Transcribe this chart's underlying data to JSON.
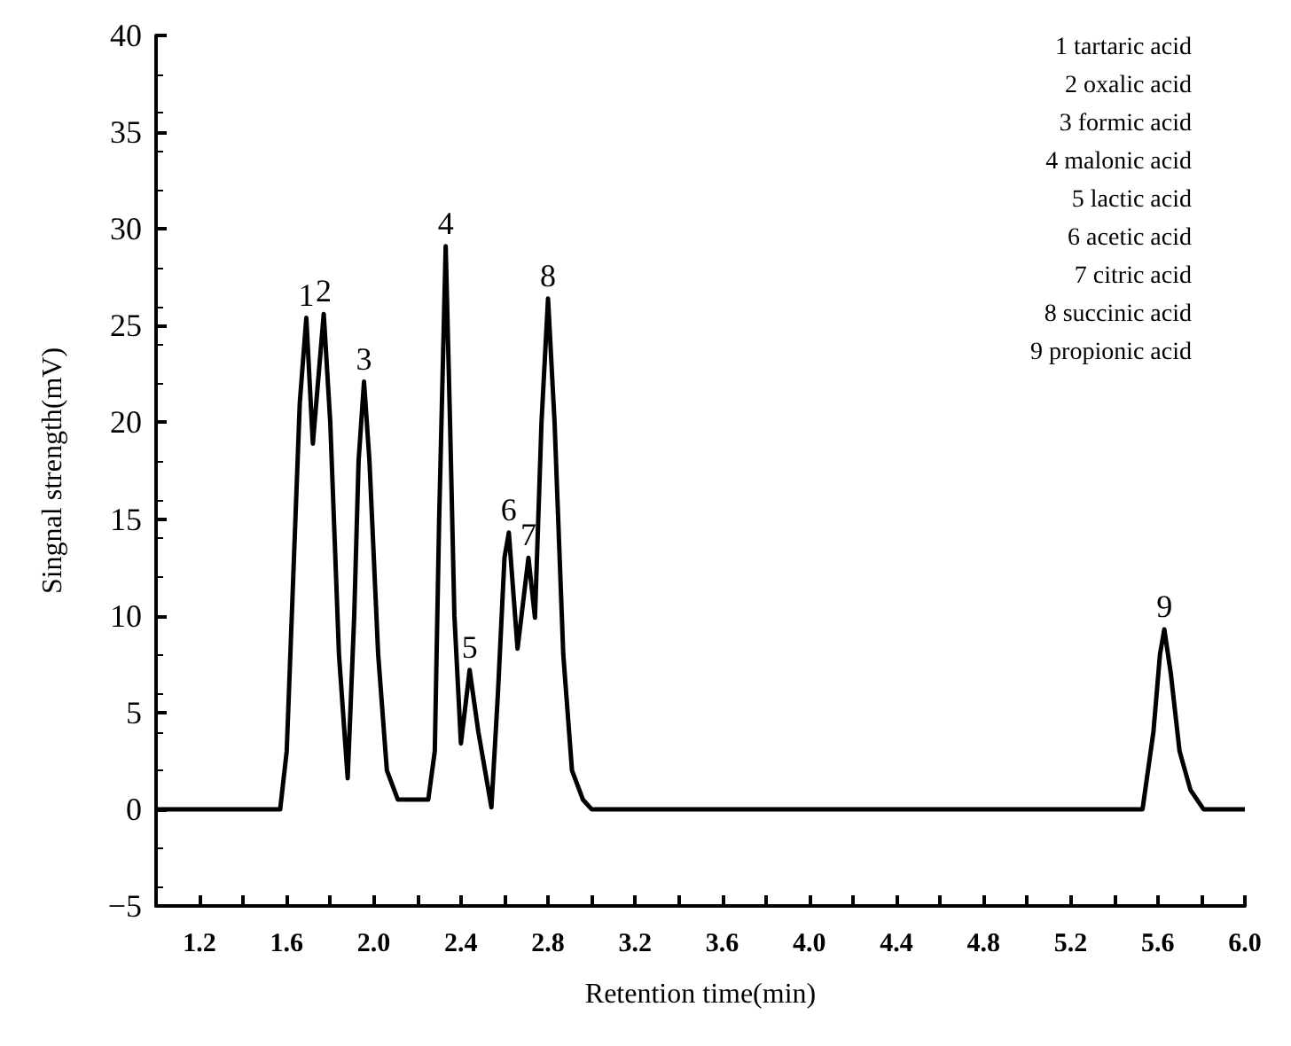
{
  "chart_data": {
    "type": "line",
    "xlabel": "Retention time(min)",
    "ylabel": "Singnal strength(mV)",
    "xlim": [
      1.0,
      6.0
    ],
    "ylim": [
      -5,
      40
    ],
    "xticks": [
      1.2,
      {
        "value": 1.4,
        "label": null
      },
      1.6,
      {
        "value": 1.8,
        "label": null
      },
      {
        "value": 2.0,
        "label": "2.0"
      },
      {
        "value": 2.2,
        "label": null
      },
      2.4,
      {
        "value": 2.6,
        "label": null
      },
      2.8,
      {
        "value": 3.0,
        "label": null
      },
      3.2,
      {
        "value": 3.4,
        "label": null
      },
      3.6,
      {
        "value": 3.8,
        "label": null
      },
      {
        "value": 4.0,
        "label": "4.0"
      },
      {
        "value": 4.2,
        "label": null
      },
      4.4,
      {
        "value": 4.6,
        "label": null
      },
      4.8,
      {
        "value": 5.0,
        "label": null
      },
      5.2,
      {
        "value": 5.4,
        "label": null
      },
      5.6,
      {
        "value": 5.8,
        "label": null
      },
      {
        "value": 6.0,
        "label": "6.0"
      }
    ],
    "yticks": [
      -5,
      0,
      5,
      10,
      15,
      20,
      25,
      30,
      35,
      40
    ],
    "grid": false,
    "marker": "none",
    "line_style": "solid",
    "series": [
      {
        "color": "#000000",
        "x": [
          1.0,
          1.4,
          1.57,
          1.6,
          1.63,
          1.66,
          1.69,
          1.72,
          1.77,
          1.8,
          1.84,
          1.88,
          1.91,
          1.93,
          1.955,
          1.98,
          2.02,
          2.06,
          2.11,
          2.25,
          2.28,
          2.3,
          2.33,
          2.35,
          2.37,
          2.4,
          2.44,
          2.48,
          2.54,
          2.57,
          2.6,
          2.62,
          2.66,
          2.71,
          2.74,
          2.77,
          2.8,
          2.83,
          2.87,
          2.91,
          2.96,
          3.0,
          5.53,
          5.58,
          5.61,
          5.63,
          5.66,
          5.7,
          5.75,
          5.81,
          6.0
        ],
        "values": [
          0,
          0,
          0,
          3,
          12,
          21,
          25.4,
          18.9,
          25.6,
          20,
          8,
          1.6,
          10,
          18,
          22.1,
          18,
          8,
          2,
          0.5,
          0.5,
          3,
          15,
          29.1,
          20,
          10,
          3.4,
          7.2,
          4,
          0.1,
          6,
          13,
          14.3,
          8.3,
          13.0,
          9.9,
          20,
          26.4,
          20,
          8,
          2,
          0.5,
          0,
          0,
          4,
          8,
          9.3,
          7,
          3,
          1,
          0,
          0
        ]
      }
    ],
    "annotations": [
      {
        "text": "1",
        "x": 1.69,
        "y": 25.4
      },
      {
        "text": "2",
        "x": 1.77,
        "y": 25.6
      },
      {
        "text": "3",
        "x": 1.955,
        "y": 22.1
      },
      {
        "text": "4",
        "x": 2.33,
        "y": 29.1
      },
      {
        "text": "5",
        "x": 2.44,
        "y": 7.2
      },
      {
        "text": "6",
        "x": 2.62,
        "y": 14.3
      },
      {
        "text": "7",
        "x": 2.71,
        "y": 13.0
      },
      {
        "text": "8",
        "x": 2.8,
        "y": 26.4
      },
      {
        "text": "9",
        "x": 5.63,
        "y": 9.3
      },
      "1 tartaric acid",
      "2 oxalic acid",
      "3 formic acid",
      "4 malonic acid",
      "5 lactic acid",
      "6 acetic acid",
      "7 citric acid",
      "8 succinic acid",
      "9 propionic acid"
    ]
  }
}
